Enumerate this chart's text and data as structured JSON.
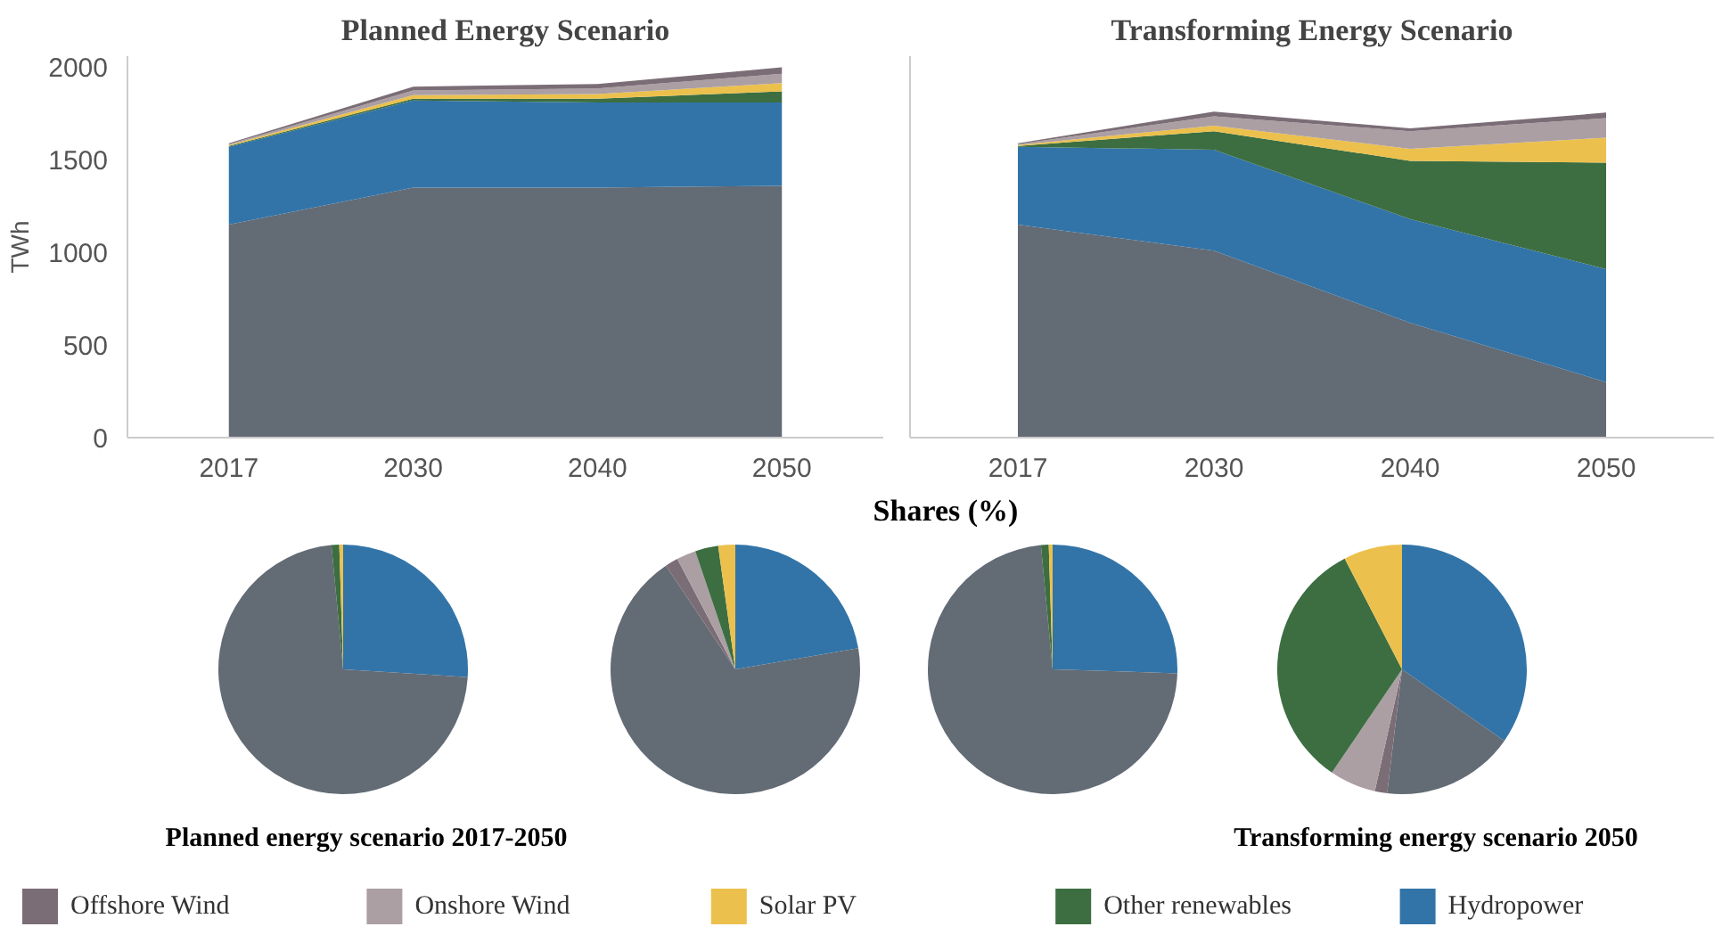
{
  "chart_data": [
    {
      "type": "area",
      "stacked": true,
      "title": "Planned Energy Scenario",
      "ylabel": "TWh",
      "categories": [
        "2017",
        "2030",
        "2040",
        "2050"
      ],
      "ylim": [
        0,
        2060
      ],
      "yticks": [
        0,
        500,
        1000,
        1500,
        2000
      ],
      "legend": "bottom",
      "grid": false,
      "series": [
        {
          "color": "#636b75",
          "values": [
            1150,
            1350,
            1350,
            1360
          ]
        },
        {
          "name": "Hydropower",
          "color": "#3274a8",
          "values": [
            420,
            470,
            460,
            450
          ]
        },
        {
          "name": "Other renewables",
          "color": "#3c6e41",
          "values": [
            5,
            10,
            20,
            60
          ]
        },
        {
          "name": "Solar PV",
          "color": "#ecc04c",
          "values": [
            5,
            20,
            25,
            45
          ]
        },
        {
          "name": "Onshore Wind",
          "color": "#ab9fa3",
          "values": [
            5,
            25,
            30,
            50
          ]
        },
        {
          "name": "Offshore Wind",
          "color": "#7b6d75",
          "values": [
            5,
            20,
            25,
            35
          ]
        }
      ]
    },
    {
      "type": "area",
      "stacked": true,
      "title": "Transforming Energy Scenario",
      "categories": [
        "2017",
        "2030",
        "2040",
        "2050"
      ],
      "ylim": [
        0,
        2060
      ],
      "tick_labels": "x",
      "legend": "bottom",
      "grid": false,
      "series": [
        {
          "color": "#636b75",
          "values": [
            1150,
            1010,
            620,
            300
          ]
        },
        {
          "name": "Hydropower",
          "color": "#3274a8",
          "values": [
            420,
            545,
            560,
            610
          ]
        },
        {
          "name": "Other renewables",
          "color": "#3c6e41",
          "values": [
            5,
            100,
            315,
            575
          ]
        },
        {
          "name": "Solar PV",
          "color": "#ecc04c",
          "values": [
            5,
            30,
            65,
            135
          ]
        },
        {
          "name": "Onshore Wind",
          "color": "#ab9fa3",
          "values": [
            5,
            50,
            95,
            105
          ]
        },
        {
          "name": "Offshore Wind",
          "color": "#7b6d75",
          "values": [
            5,
            25,
            15,
            30
          ]
        }
      ]
    },
    {
      "type": "pie",
      "annotations": [
        "Planned energy scenario 2017-2050"
      ],
      "categories": [
        null,
        null,
        null,
        null
      ],
      "values": [
        26,
        72.5,
        1,
        0.5
      ],
      "colors": [
        "#3274a8",
        "#636b75",
        "#3c6e41",
        "#ecc04c"
      ]
    },
    {
      "type": "pie",
      "categories": [
        null,
        null,
        null,
        null,
        null,
        null
      ],
      "values": [
        22.3,
        68.3,
        1.7,
        2.5,
        3,
        2.2
      ],
      "colors": [
        "#3274a8",
        "#636b75",
        "#7b6d75",
        "#ab9fa3",
        "#3c6e41",
        "#ecc04c"
      ]
    },
    {
      "type": "pie",
      "title": "Shares (%)",
      "categories": [
        null,
        null,
        null,
        null
      ],
      "values": [
        25.5,
        73,
        1,
        0.5
      ],
      "colors": [
        "#3274a8",
        "#636b75",
        "#3c6e41",
        "#ecc04c"
      ]
    },
    {
      "type": "pie",
      "annotations": [
        "Transforming energy scenario 2050"
      ],
      "categories": [
        null,
        null,
        null,
        null,
        null,
        null
      ],
      "values": [
        34.7,
        17.2,
        1.6,
        6,
        32.9,
        7.6
      ],
      "colors": [
        "#3274a8",
        "#636b75",
        "#7b6d75",
        "#ab9fa3",
        "#3c6e41",
        "#ecc04c"
      ]
    }
  ]
}
